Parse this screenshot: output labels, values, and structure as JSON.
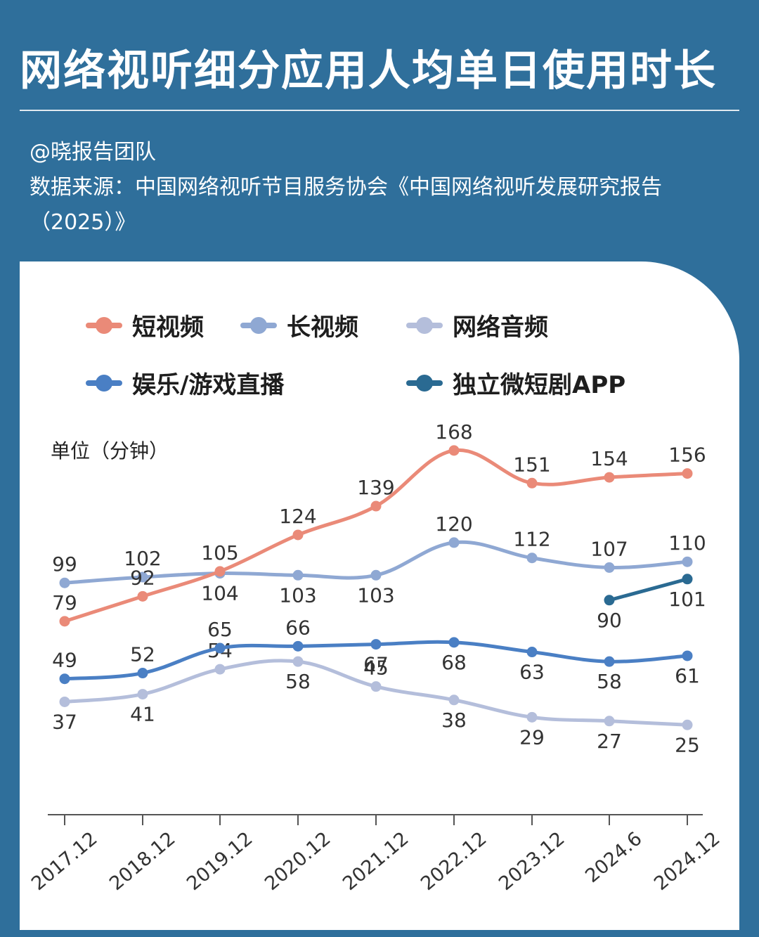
{
  "header": {
    "title": "网络视听细分应用人均单日使用时长",
    "author": "@晓报告团队",
    "source": "数据来源：中国网络视听节目服务协会《中国网络视听发展研究报告（2025）》"
  },
  "chart_data": {
    "type": "line",
    "title": "网络视听细分应用人均单日使用时长",
    "ylabel": "单位（分钟）",
    "xlabel": "",
    "categories": [
      "2017.12",
      "2018.12",
      "2019.12",
      "2020.12",
      "2021.12",
      "2022.12",
      "2023.12",
      "2024.6",
      "2024.12"
    ],
    "ylim": [
      0,
      180
    ],
    "grid": false,
    "legend_position": "top",
    "series": [
      {
        "name": "短视频",
        "color": "#ea8a78",
        "values": [
          79,
          92,
          105,
          124,
          139,
          168,
          151,
          154,
          156
        ]
      },
      {
        "name": "长视频",
        "color": "#8fa8d3",
        "values": [
          99,
          102,
          104,
          103,
          103,
          120,
          112,
          107,
          110
        ]
      },
      {
        "name": "网络音频",
        "color": "#b4bedb",
        "values": [
          37,
          41,
          54,
          58,
          45,
          38,
          29,
          27,
          25
        ]
      },
      {
        "name": "娱乐/游戏直播",
        "color": "#4a7fc4",
        "values": [
          49,
          52,
          65,
          66,
          67,
          68,
          63,
          58,
          61
        ]
      },
      {
        "name": "独立微短剧APP",
        "color": "#2a6a92",
        "values": [
          null,
          null,
          null,
          null,
          null,
          null,
          null,
          90,
          101
        ]
      }
    ]
  }
}
